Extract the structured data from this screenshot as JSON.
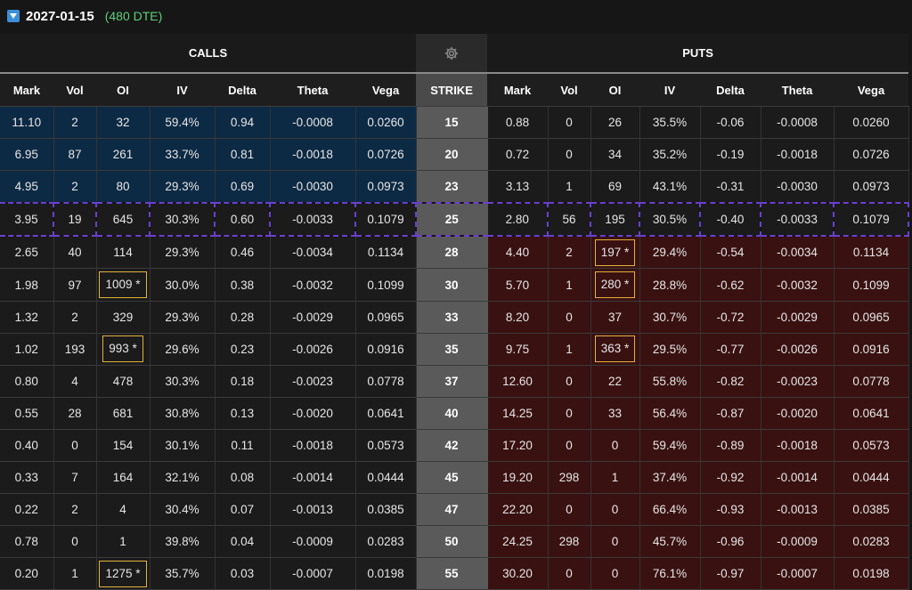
{
  "expiry": {
    "date": "2027-01-15",
    "dte": "(480 DTE)"
  },
  "sections": {
    "calls": "CALLS",
    "puts": "PUTS",
    "settings_icon": "gear-icon"
  },
  "columns": {
    "calls": [
      "Mark",
      "Vol",
      "OI",
      "IV",
      "Delta",
      "Theta",
      "Vega"
    ],
    "strike": "STRIKE",
    "puts": [
      "Mark",
      "Vol",
      "OI",
      "IV",
      "Delta",
      "Theta",
      "Vega"
    ]
  },
  "colors": {
    "call_itm": "#0d2a44",
    "put_itm": "#3a1111",
    "atm_outline": "#6a3fd0",
    "highlight": "#e3b23c"
  },
  "rows": [
    {
      "strike": "15",
      "moneyness": "call_itm",
      "call": {
        "mark": "11.10",
        "vol": "2",
        "oi": "32",
        "iv": "59.4%",
        "delta": "0.94",
        "theta": "-0.0008",
        "vega": "0.0260"
      },
      "put": {
        "mark": "0.88",
        "vol": "0",
        "oi": "26",
        "iv": "35.5%",
        "delta": "-0.06",
        "theta": "-0.0008",
        "vega": "0.0260"
      }
    },
    {
      "strike": "20",
      "moneyness": "call_itm",
      "call": {
        "mark": "6.95",
        "vol": "87",
        "oi": "261",
        "iv": "33.7%",
        "delta": "0.81",
        "theta": "-0.0018",
        "vega": "0.0726"
      },
      "put": {
        "mark": "0.72",
        "vol": "0",
        "oi": "34",
        "iv": "35.2%",
        "delta": "-0.19",
        "theta": "-0.0018",
        "vega": "0.0726"
      }
    },
    {
      "strike": "23",
      "moneyness": "call_itm",
      "call": {
        "mark": "4.95",
        "vol": "2",
        "oi": "80",
        "iv": "29.3%",
        "delta": "0.69",
        "theta": "-0.0030",
        "vega": "0.0973"
      },
      "put": {
        "mark": "3.13",
        "vol": "1",
        "oi": "69",
        "iv": "43.1%",
        "delta": "-0.31",
        "theta": "-0.0030",
        "vega": "0.0973"
      }
    },
    {
      "strike": "25",
      "moneyness": "atm",
      "call": {
        "mark": "3.95",
        "vol": "19",
        "oi": "645",
        "iv": "30.3%",
        "delta": "0.60",
        "theta": "-0.0033",
        "vega": "0.1079"
      },
      "put": {
        "mark": "2.80",
        "vol": "56",
        "oi": "195",
        "iv": "30.5%",
        "delta": "-0.40",
        "theta": "-0.0033",
        "vega": "0.1079"
      }
    },
    {
      "strike": "28",
      "moneyness": "put_itm",
      "call": {
        "mark": "2.65",
        "vol": "40",
        "oi": "114",
        "iv": "29.3%",
        "delta": "0.46",
        "theta": "-0.0034",
        "vega": "0.1134"
      },
      "put": {
        "mark": "4.40",
        "vol": "2",
        "oi": "197 *",
        "oi_hl": true,
        "iv": "29.4%",
        "delta": "-0.54",
        "theta": "-0.0034",
        "vega": "0.1134"
      }
    },
    {
      "strike": "30",
      "moneyness": "put_itm",
      "call": {
        "mark": "1.98",
        "vol": "97",
        "oi": "1009 *",
        "oi_hl": true,
        "iv": "30.0%",
        "delta": "0.38",
        "theta": "-0.0032",
        "vega": "0.1099"
      },
      "put": {
        "mark": "5.70",
        "vol": "1",
        "oi": "280 *",
        "oi_hl": true,
        "iv": "28.8%",
        "delta": "-0.62",
        "theta": "-0.0032",
        "vega": "0.1099"
      }
    },
    {
      "strike": "33",
      "moneyness": "put_itm",
      "call": {
        "mark": "1.32",
        "vol": "2",
        "oi": "329",
        "iv": "29.3%",
        "delta": "0.28",
        "theta": "-0.0029",
        "vega": "0.0965"
      },
      "put": {
        "mark": "8.20",
        "vol": "0",
        "oi": "37",
        "iv": "30.7%",
        "delta": "-0.72",
        "theta": "-0.0029",
        "vega": "0.0965"
      }
    },
    {
      "strike": "35",
      "moneyness": "put_itm",
      "call": {
        "mark": "1.02",
        "vol": "193",
        "oi": "993 *",
        "oi_hl": true,
        "iv": "29.6%",
        "delta": "0.23",
        "theta": "-0.0026",
        "vega": "0.0916"
      },
      "put": {
        "mark": "9.75",
        "vol": "1",
        "oi": "363 *",
        "oi_hl": true,
        "iv": "29.5%",
        "delta": "-0.77",
        "theta": "-0.0026",
        "vega": "0.0916"
      }
    },
    {
      "strike": "37",
      "moneyness": "put_itm",
      "call": {
        "mark": "0.80",
        "vol": "4",
        "oi": "478",
        "iv": "30.3%",
        "delta": "0.18",
        "theta": "-0.0023",
        "vega": "0.0778"
      },
      "put": {
        "mark": "12.60",
        "vol": "0",
        "oi": "22",
        "iv": "55.8%",
        "delta": "-0.82",
        "theta": "-0.0023",
        "vega": "0.0778"
      }
    },
    {
      "strike": "40",
      "moneyness": "put_itm",
      "call": {
        "mark": "0.55",
        "vol": "28",
        "oi": "681",
        "iv": "30.8%",
        "delta": "0.13",
        "theta": "-0.0020",
        "vega": "0.0641"
      },
      "put": {
        "mark": "14.25",
        "vol": "0",
        "oi": "33",
        "iv": "56.4%",
        "delta": "-0.87",
        "theta": "-0.0020",
        "vega": "0.0641"
      }
    },
    {
      "strike": "42",
      "moneyness": "put_itm",
      "call": {
        "mark": "0.40",
        "vol": "0",
        "oi": "154",
        "iv": "30.1%",
        "delta": "0.11",
        "theta": "-0.0018",
        "vega": "0.0573"
      },
      "put": {
        "mark": "17.20",
        "vol": "0",
        "oi": "0",
        "iv": "59.4%",
        "delta": "-0.89",
        "theta": "-0.0018",
        "vega": "0.0573"
      }
    },
    {
      "strike": "45",
      "moneyness": "put_itm",
      "call": {
        "mark": "0.33",
        "vol": "7",
        "oi": "164",
        "iv": "32.1%",
        "delta": "0.08",
        "theta": "-0.0014",
        "vega": "0.0444"
      },
      "put": {
        "mark": "19.20",
        "vol": "298",
        "oi": "1",
        "iv": "37.4%",
        "delta": "-0.92",
        "theta": "-0.0014",
        "vega": "0.0444"
      }
    },
    {
      "strike": "47",
      "moneyness": "put_itm",
      "call": {
        "mark": "0.22",
        "vol": "2",
        "oi": "4",
        "iv": "30.4%",
        "delta": "0.07",
        "theta": "-0.0013",
        "vega": "0.0385"
      },
      "put": {
        "mark": "22.20",
        "vol": "0",
        "oi": "0",
        "iv": "66.4%",
        "delta": "-0.93",
        "theta": "-0.0013",
        "vega": "0.0385"
      }
    },
    {
      "strike": "50",
      "moneyness": "put_itm",
      "call": {
        "mark": "0.78",
        "vol": "0",
        "oi": "1",
        "iv": "39.8%",
        "delta": "0.04",
        "theta": "-0.0009",
        "vega": "0.0283"
      },
      "put": {
        "mark": "24.25",
        "vol": "298",
        "oi": "0",
        "iv": "45.7%",
        "delta": "-0.96",
        "theta": "-0.0009",
        "vega": "0.0283"
      }
    },
    {
      "strike": "55",
      "moneyness": "put_itm",
      "call": {
        "mark": "0.20",
        "vol": "1",
        "oi": "1275 *",
        "oi_hl": true,
        "iv": "35.7%",
        "delta": "0.03",
        "theta": "-0.0007",
        "vega": "0.0198"
      },
      "put": {
        "mark": "30.20",
        "vol": "0",
        "oi": "0",
        "iv": "76.1%",
        "delta": "-0.97",
        "theta": "-0.0007",
        "vega": "0.0198"
      }
    }
  ]
}
